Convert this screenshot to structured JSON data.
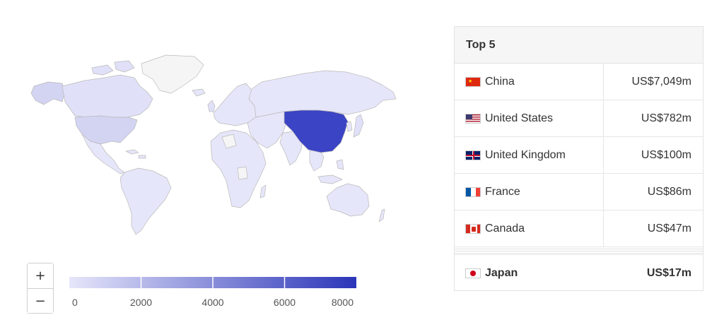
{
  "map": {
    "colors": {
      "low": "#e6e6fa",
      "high": "#2b35b8",
      "nodata": "#f5f5f5",
      "border": "#b9b9b9",
      "highlight": "#3b44c4",
      "tint": "#d3d3f2"
    },
    "highlighted_country": "China",
    "shaded_countries": [
      "United States",
      "United Kingdom",
      "France",
      "Canada",
      "Japan"
    ]
  },
  "zoom": {
    "in_label": "+",
    "out_label": "−"
  },
  "legend": {
    "ticks": [
      "0",
      "2000",
      "4000",
      "6000",
      "8000"
    ],
    "colors": {
      "start": "#e6e6fa",
      "end": "#2b35b8"
    }
  },
  "table": {
    "title": "Top 5",
    "rows": [
      {
        "country": "China",
        "value": "US$7,049m",
        "flag": "cn-flag-icon"
      },
      {
        "country": "United States",
        "value": "US$782m",
        "flag": "us-flag-icon"
      },
      {
        "country": "United Kingdom",
        "value": "US$100m",
        "flag": "gb-flag-icon"
      },
      {
        "country": "France",
        "value": "US$86m",
        "flag": "fr-flag-icon"
      },
      {
        "country": "Canada",
        "value": "US$47m",
        "flag": "ca-flag-icon"
      }
    ],
    "highlight_row": {
      "country": "Japan",
      "value": "US$17m",
      "flag": "jp-flag-icon"
    }
  }
}
